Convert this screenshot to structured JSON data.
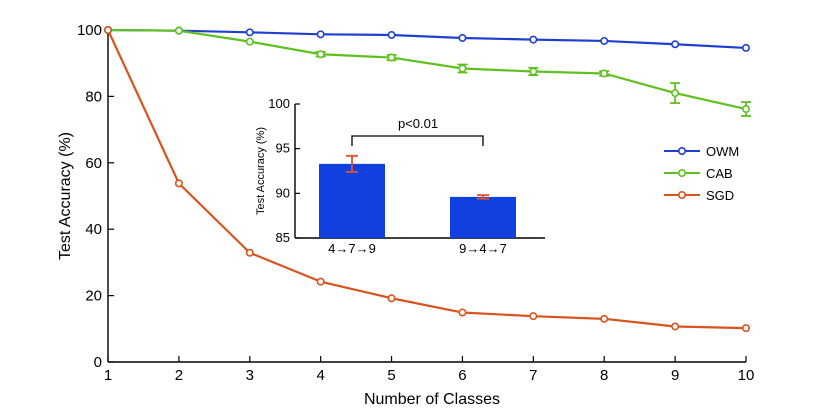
{
  "chart_data": [
    {
      "type": "line",
      "title": "",
      "xlabel": "Number of Classes",
      "ylabel": "Test Accuracy (%)",
      "xlim": [
        1,
        10
      ],
      "ylim": [
        0,
        100
      ],
      "x": [
        1,
        2,
        3,
        4,
        5,
        6,
        7,
        8,
        9,
        10
      ],
      "xticks": [
        "1",
        "2",
        "3",
        "4",
        "5",
        "6",
        "7",
        "8",
        "9",
        "10"
      ],
      "yticks": [
        "0",
        "20",
        "40",
        "60",
        "80",
        "100"
      ],
      "legend": "right",
      "series": [
        {
          "name": "OWM",
          "color": "#1f3fd1",
          "values": [
            100,
            99.8,
            99.3,
            98.7,
            98.5,
            97.6,
            97.1,
            96.7,
            95.7,
            94.6
          ],
          "errors": [
            0,
            0.2,
            0.2,
            0.3,
            0.3,
            0.3,
            0.3,
            0.3,
            0.3,
            0.3
          ]
        },
        {
          "name": "CAB",
          "color": "#5fc11f",
          "values": [
            100,
            99.8,
            96.5,
            92.7,
            91.7,
            88.4,
            87.5,
            86.9,
            81,
            76.2
          ],
          "errors": [
            0,
            0.3,
            0.4,
            0.7,
            0.8,
            1.2,
            1.1,
            0.7,
            3.0,
            2.1
          ]
        },
        {
          "name": "SGD",
          "color": "#d9531e",
          "values": [
            100,
            53.8,
            32.9,
            24.2,
            19.2,
            14.9,
            13.8,
            13,
            10.7,
            10.2
          ],
          "errors": [
            0,
            0.3,
            0.3,
            0.3,
            0.3,
            0.3,
            0.3,
            0.3,
            0.3,
            0.3
          ]
        }
      ]
    },
    {
      "type": "bar",
      "title": "",
      "xlabel": "",
      "ylabel": "Test Accuracy (%)",
      "ylim": [
        85,
        100
      ],
      "yticks": [
        "85",
        "90",
        "95",
        "100"
      ],
      "categories": [
        "4→7→9",
        "9→4→7"
      ],
      "values": [
        93.3,
        89.6
      ],
      "errors": [
        0.9,
        0.2
      ],
      "bar_color": "#1040e0",
      "error_color": "#e0502a",
      "annotation": "p<0.01"
    }
  ]
}
